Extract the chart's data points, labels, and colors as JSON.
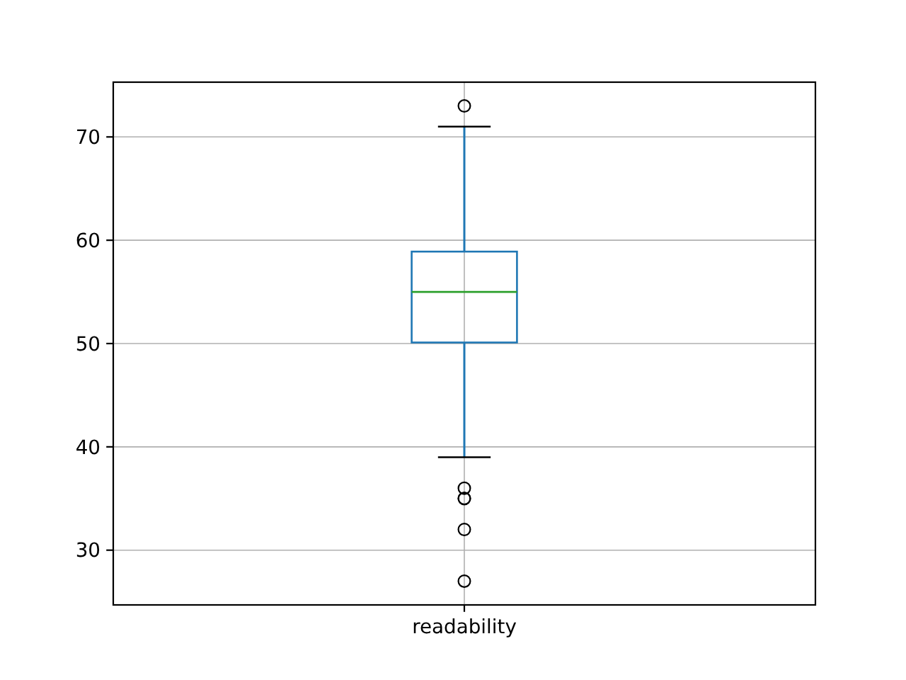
{
  "chart_data": {
    "type": "box",
    "categories": [
      "readability"
    ],
    "boxes": [
      {
        "low": 39,
        "q1": 50.1,
        "median": 55,
        "q3": 58.9,
        "high": 71,
        "outliers": [
          73,
          36,
          35,
          35,
          32,
          27
        ]
      }
    ],
    "color": "#1f77b4",
    "ylim": [
      24.7,
      75.3
    ],
    "yticks": [
      30,
      40,
      50,
      60,
      70
    ],
    "grid": true
  }
}
